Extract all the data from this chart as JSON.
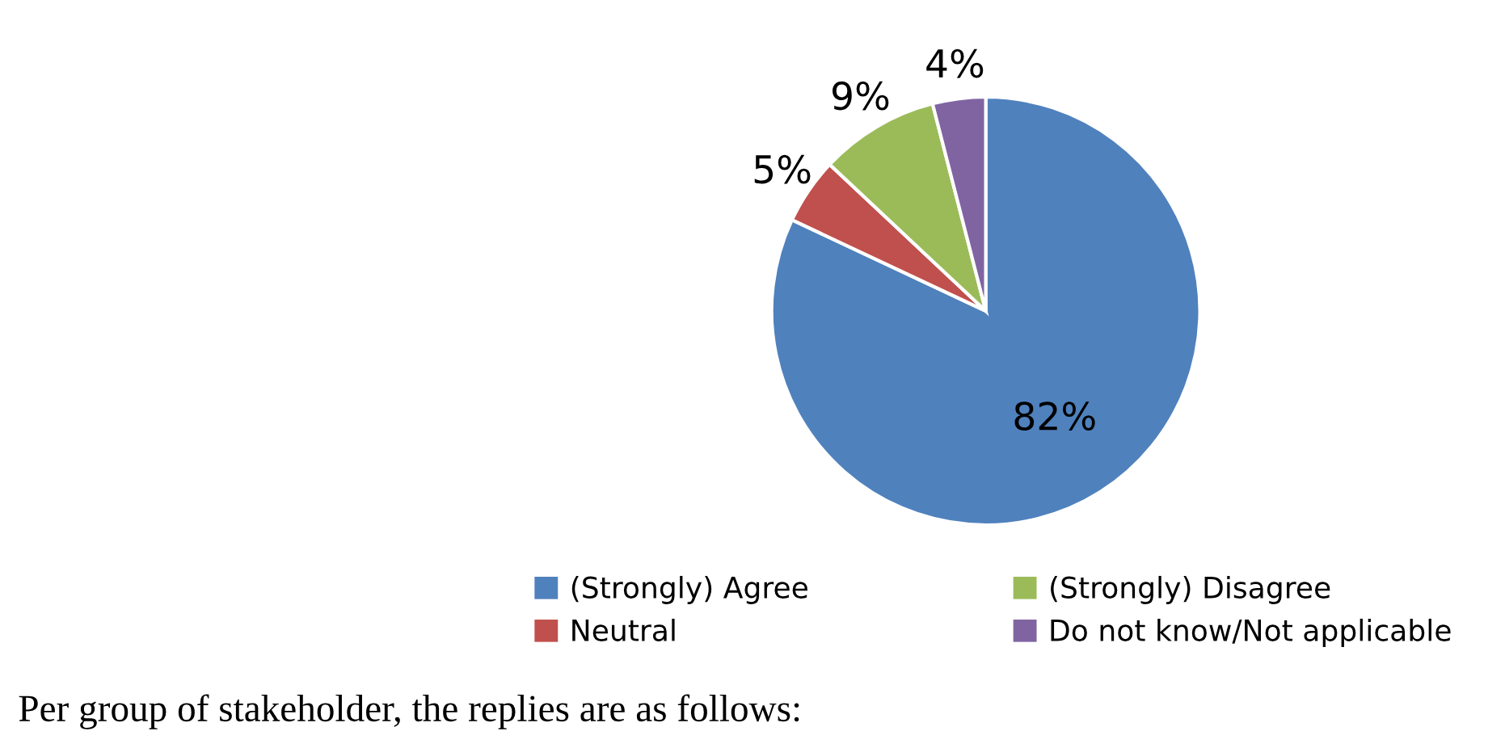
{
  "chart_data": {
    "type": "pie",
    "categories": [
      "(Strongly) Agree",
      "Neutral",
      "(Strongly) Disagree",
      "Do not know/Not applicable"
    ],
    "values": [
      82,
      5,
      9,
      4
    ],
    "colors": [
      "#4f81bd",
      "#c0504d",
      "#9bbb59",
      "#8064a2"
    ],
    "value_labels": [
      "82%",
      "5%",
      "9%",
      "4%"
    ],
    "legend": "bottom",
    "annotations": [
      "Per group of stakeholder, the replies are as follows:"
    ]
  }
}
